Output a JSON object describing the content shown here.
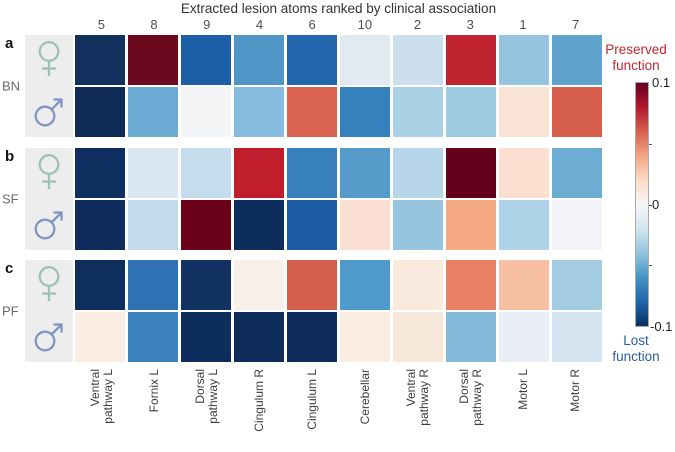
{
  "chart_data": {
    "type": "heatmap",
    "title": "Extracted lesion atoms ranked by clinical association",
    "value_range": [
      -0.1,
      0.1
    ],
    "colormap": "RdBu reversed (red = positive / preserved function, blue = negative / lost function)",
    "column_ranks": [
      "5",
      "8",
      "9",
      "4",
      "6",
      "10",
      "2",
      "3",
      "1",
      "7"
    ],
    "columns": [
      "Ventral pathway L",
      "Fornix L",
      "Dorsal pathway L",
      "Cingulum R",
      "Cingulum L",
      "Cerebellar",
      "Ventral pathway R",
      "Dorsal pathway R",
      "Motor L",
      "Motor R"
    ],
    "row_groups": [
      {
        "letter": "a",
        "group": "BN",
        "rows": [
          {
            "sex": "female",
            "values": [
              -0.09,
              0.095,
              -0.07,
              -0.05,
              -0.065,
              -0.013,
              -0.024,
              0.078,
              -0.033,
              -0.046
            ],
            "colors": [
              "#12315f",
              "#6b0a1f",
              "#1d5fa6",
              "#4f96c7",
              "#2366ae",
              "#e2eaf1",
              "#cbdfec",
              "#c02430",
              "#95c4df",
              "#60a3cd"
            ]
          },
          {
            "sex": "male",
            "values": [
              -0.092,
              -0.041,
              -0.001,
              -0.036,
              0.055,
              -0.061,
              -0.028,
              -0.031,
              0.012,
              0.057
            ],
            "colors": [
              "#0f2c59",
              "#6cabd3",
              "#f3f5f6",
              "#85bbdc",
              "#d96350",
              "#3481bd",
              "#aad1e5",
              "#9ecbe2",
              "#f8e3d5",
              "#d6604d"
            ]
          }
        ]
      },
      {
        "letter": "b",
        "group": "SF",
        "rows": [
          {
            "sex": "female",
            "values": [
              -0.091,
              -0.016,
              -0.026,
              0.08,
              -0.058,
              -0.05,
              -0.03,
              0.1,
              0.016,
              -0.044
            ],
            "colors": [
              "#0f2f60",
              "#d9e7f2",
              "#c5dcec",
              "#c01e2d",
              "#3981bd",
              "#549bc9",
              "#b8d6e9",
              "#65001d",
              "#fbdfd0",
              "#6dadd4"
            ]
          },
          {
            "sex": "male",
            "values": [
              -0.093,
              -0.027,
              0.097,
              -0.094,
              -0.072,
              0.015,
              -0.036,
              0.035,
              -0.029,
              -0.001
            ],
            "colors": [
              "#0e2d5c",
              "#c2dbec",
              "#6c0219",
              "#0d2d5e",
              "#1d5ca5",
              "#fadfd2",
              "#97c5e0",
              "#f5a983",
              "#aed2e8",
              "#f3f5f8"
            ]
          }
        ]
      },
      {
        "letter": "c",
        "group": "PF",
        "rows": [
          {
            "sex": "female",
            "values": [
              -0.092,
              -0.064,
              -0.089,
              0.005,
              0.058,
              -0.051,
              0.009,
              0.046,
              0.027,
              -0.033
            ],
            "colors": [
              "#0e2f5e",
              "#2e72b4",
              "#123263",
              "#f9efe9",
              "#d45f4c",
              "#4f99cb",
              "#faeadd",
              "#e98063",
              "#f7c0a4",
              "#a3cbe2"
            ]
          },
          {
            "sex": "male",
            "values": [
              0.008,
              -0.057,
              -0.093,
              -0.094,
              -0.093,
              0.011,
              0.008,
              -0.04,
              -0.009,
              -0.018
            ],
            "colors": [
              "#faeee4",
              "#3d83be",
              "#0d2e5c",
              "#0e2d5b",
              "#0e2d5c",
              "#f9ece1",
              "#f8e8da",
              "#85b9da",
              "#e9eff5",
              "#d3e3f0"
            ]
          }
        ]
      }
    ],
    "colorbar": {
      "ticks": [
        "0.1",
        "0",
        "-0.1"
      ],
      "top_annotation": "Preserved function",
      "bottom_annotation": "Lost function"
    }
  },
  "display": {
    "x_labels_two_line": [
      "Ventral\npathway L",
      "Fornix L",
      "Dorsal\npathway L",
      "Cingulum R",
      "Cingulum L",
      "Cerebellar",
      "Ventral\npathway R",
      "Dorsal\npathway R",
      "Motor L",
      "Motor R"
    ],
    "colorbar_top_label": "Preserved\nfunction",
    "colorbar_bottom_label": "Lost\nfunction",
    "colors": {
      "preserved_label": "#c0272d",
      "lost_label": "#2a5d9c",
      "female_symbol": "#9cc3b1",
      "male_symbol": "#8094c6",
      "symbol_box_bg": "#ededed",
      "colorbar_gradient": [
        "#67001f",
        "#b2182b",
        "#d6604d",
        "#f4a582",
        "#fddbc7",
        "#f7f7f7",
        "#d1e5f0",
        "#92c5de",
        "#4393c3",
        "#2166ac",
        "#053061"
      ]
    }
  }
}
